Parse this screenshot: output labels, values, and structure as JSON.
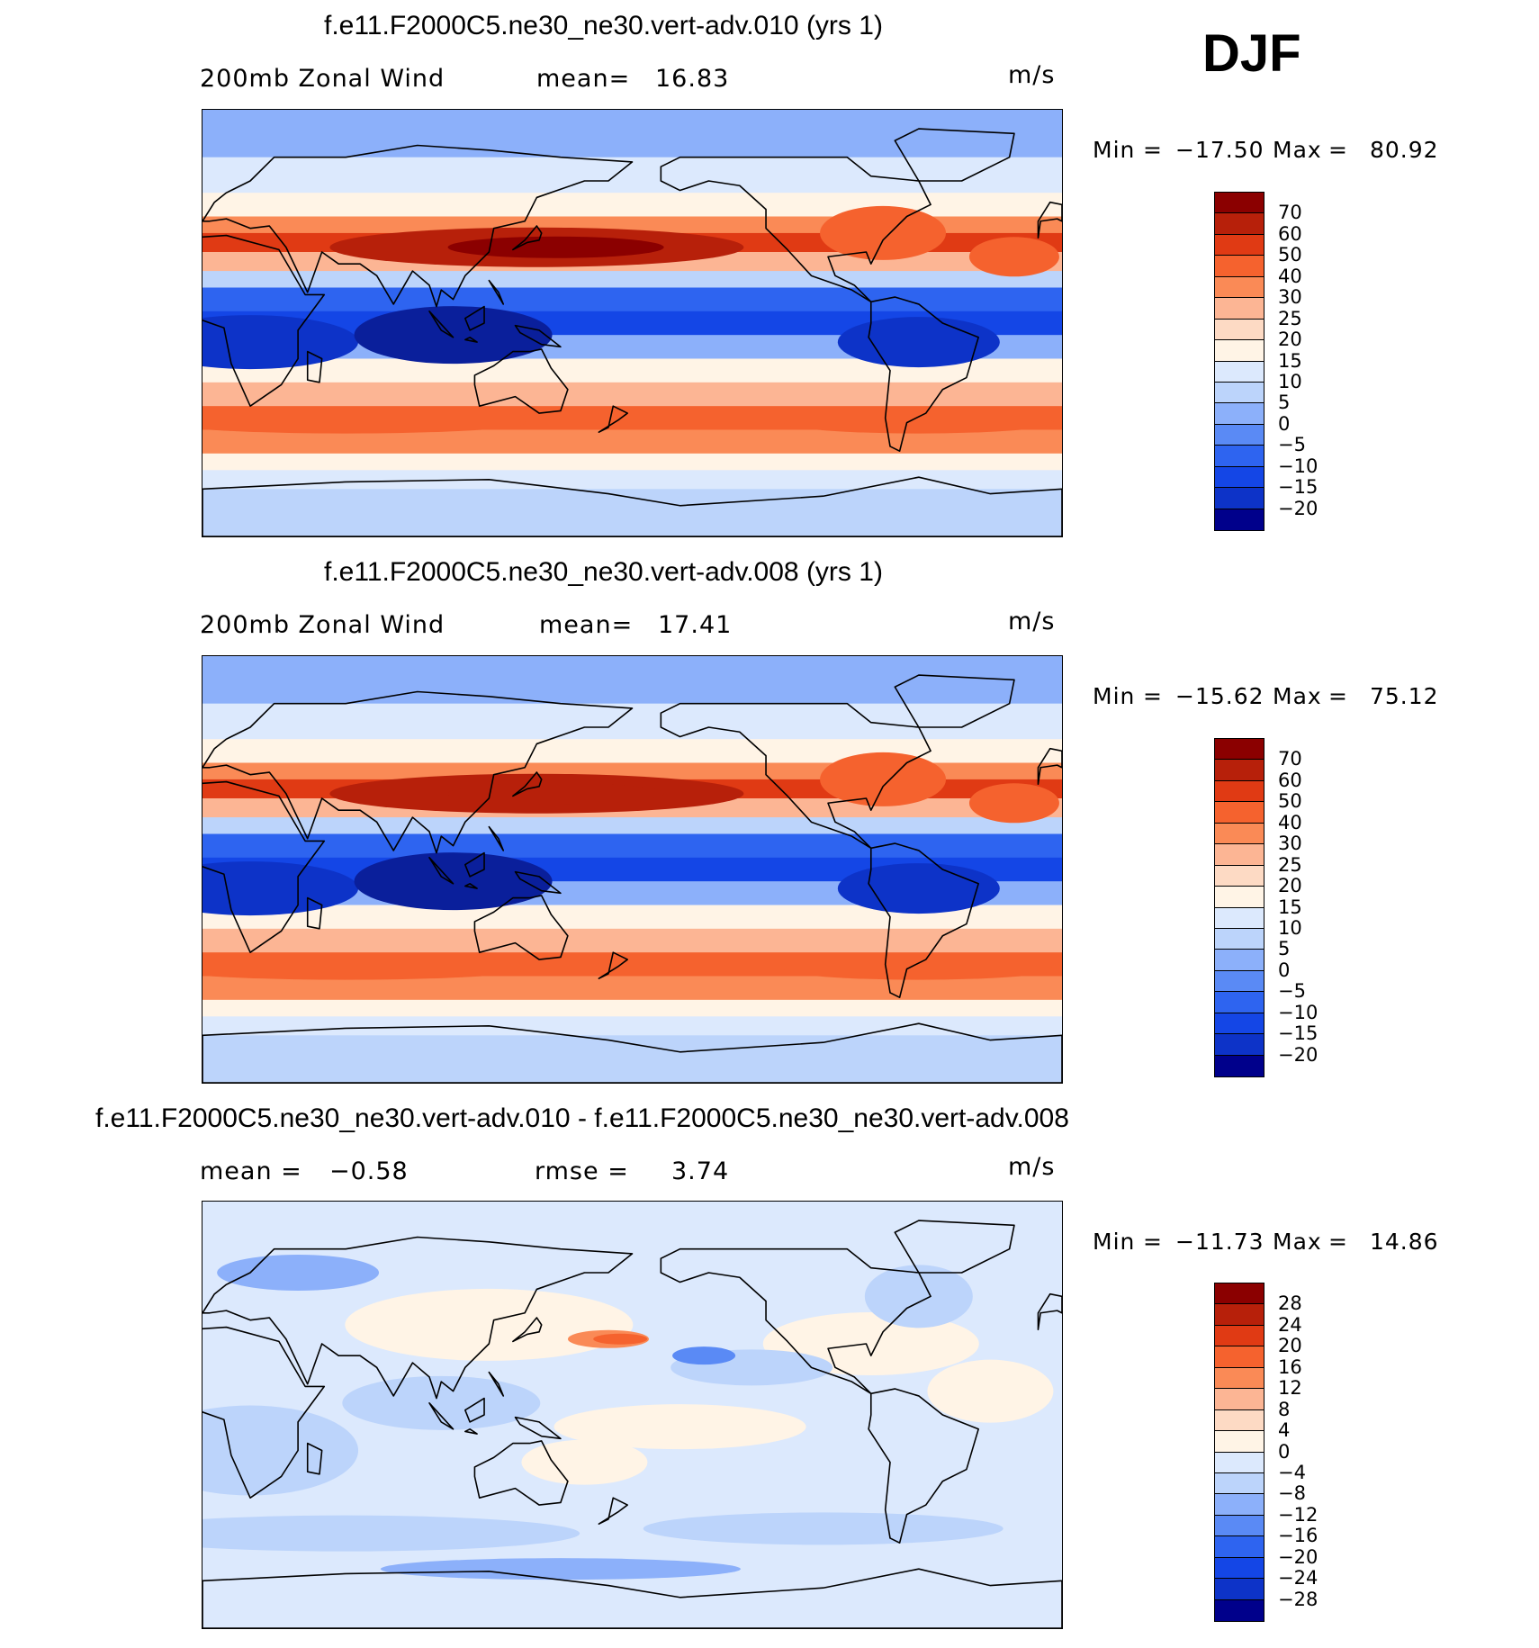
{
  "season": "DJF",
  "colors": {
    "scale": [
      "#00008b",
      "#0a1f9b",
      "#0d33c8",
      "#1446e6",
      "#2e64f0",
      "#5a8af5",
      "#8cb0fa",
      "#bcd4fb",
      "#dce9fd",
      "#fff4e6",
      "#fddac4",
      "#fcb594",
      "#fa8a56",
      "#f5622e",
      "#e03a14",
      "#b7200a",
      "#8b0000"
    ]
  },
  "panels": [
    {
      "title": "f.e11.F2000C5.ne30_ne30.vert-adv.010 (yrs 1)",
      "left_label": "200mb Zonal Wind",
      "stat1_label": "mean=",
      "stat1_value": "16.83",
      "stat2_label": "",
      "stat2_value": "",
      "units": "m/s",
      "min_label": "Min",
      "min_value": "−17.50",
      "max_label": "Max",
      "max_value": "80.92",
      "colorbar_labels": [
        "70",
        "60",
        "50",
        "40",
        "30",
        "25",
        "20",
        "15",
        "10",
        "5",
        "0",
        "−5",
        "−10",
        "−15",
        "−20"
      ],
      "jet_strength": 1.0
    },
    {
      "title": "f.e11.F2000C5.ne30_ne30.vert-adv.008 (yrs 1)",
      "left_label": "200mb Zonal Wind",
      "stat1_label": "mean=",
      "stat1_value": "17.41",
      "stat2_label": "",
      "stat2_value": "",
      "units": "m/s",
      "min_label": "Min",
      "min_value": "−15.62",
      "max_label": "Max",
      "max_value": "75.12",
      "colorbar_labels": [
        "70",
        "60",
        "50",
        "40",
        "30",
        "25",
        "20",
        "15",
        "10",
        "5",
        "0",
        "−5",
        "−10",
        "−15",
        "−20"
      ],
      "jet_strength": 0.92
    },
    {
      "title": "f.e11.F2000C5.ne30_ne30.vert-adv.010 - f.e11.F2000C5.ne30_ne30.vert-adv.008",
      "left_label": "mean =",
      "stat1_label": "−0.58",
      "stat1_value": "",
      "stat2_label": "rmse =",
      "stat2_value": "3.74",
      "units": "m/s",
      "min_label": "Min",
      "min_value": "−11.73",
      "max_label": "Max",
      "max_value": "14.86",
      "colorbar_labels": [
        "28",
        "24",
        "20",
        "16",
        "12",
        "8",
        "4",
        "0",
        "−4",
        "−8",
        "−12",
        "−16",
        "−20",
        "−24",
        "−28"
      ],
      "jet_strength": 0.0
    }
  ]
}
